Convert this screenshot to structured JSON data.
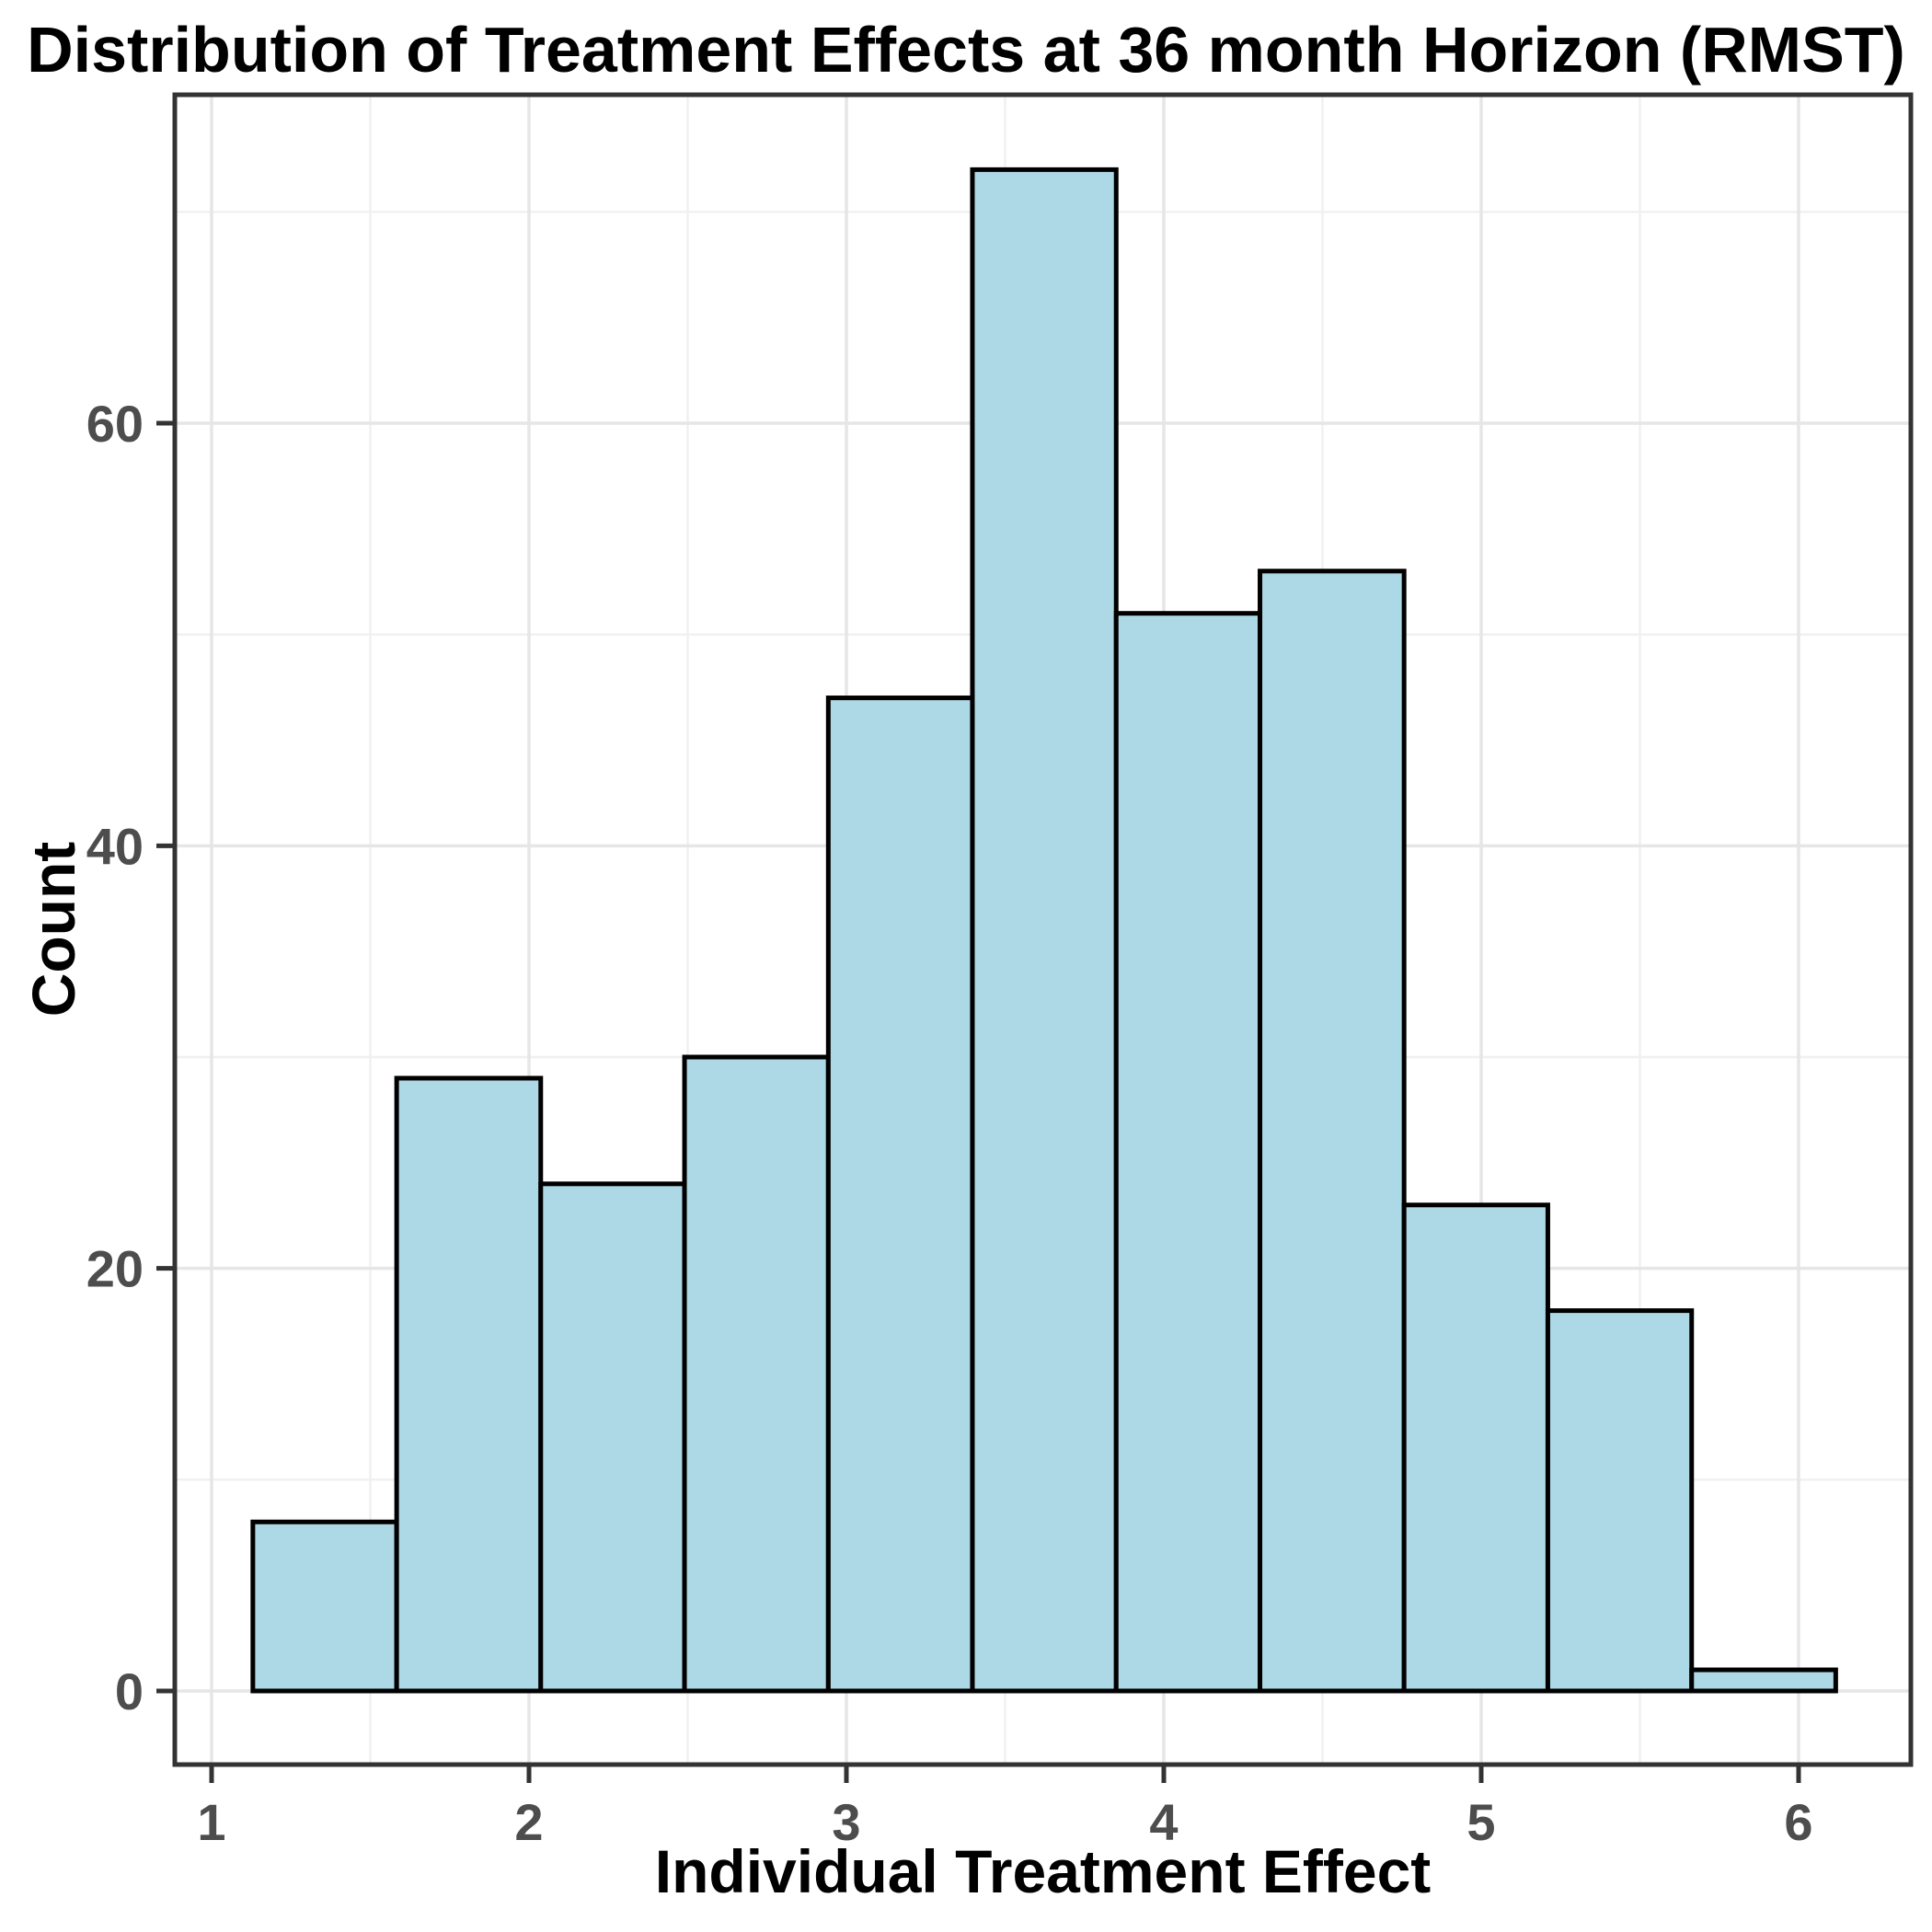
{
  "chart_data": {
    "type": "bar",
    "subtype": "histogram",
    "title": "Distribution of Treatment Effects at 36 month Horizon (RMST)",
    "xlabel": "Individual Treatment Effect",
    "ylabel": "Count",
    "bin_edges": [
      1.13,
      1.583,
      2.037,
      2.49,
      2.943,
      3.397,
      3.85,
      4.303,
      4.757,
      5.21,
      5.663,
      6.117
    ],
    "counts": [
      8,
      29,
      24,
      30,
      47,
      72,
      51,
      53,
      23,
      18,
      1
    ],
    "x_ticks": [
      1,
      2,
      3,
      4,
      5,
      6
    ],
    "y_ticks": [
      0,
      20,
      40,
      60
    ],
    "x_minor_ticks": [
      1.5,
      2.5,
      3.5,
      4.5,
      5.5
    ],
    "y_minor_ticks": [
      10,
      30,
      50,
      70
    ],
    "xlim": [
      0.884,
      6.354
    ],
    "ylim": [
      0,
      72
    ],
    "grid": true,
    "legend": false,
    "colors": {
      "bar_fill": "#ADD8E6",
      "bar_stroke": "#000000",
      "panel_background": "#FFFFFF",
      "panel_border": "#333333",
      "major_grid": "#E6E6E6",
      "minor_grid": "#F0F0F0",
      "tick_mark": "#333333",
      "tick_label": "#4D4D4D",
      "title_text": "#000000"
    }
  }
}
